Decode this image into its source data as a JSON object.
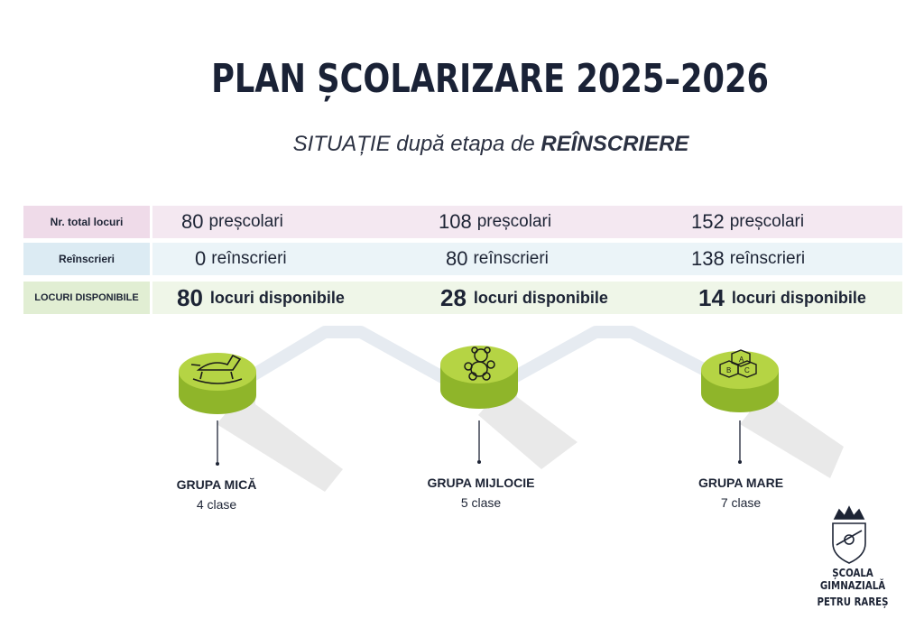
{
  "header": {
    "title": "PLAN ȘCOLARIZARE 2025–2026",
    "subtitle_prefix": "SITUAȚIE după etapa de",
    "subtitle_bold": "REÎNSCRIERE"
  },
  "table": {
    "rows": [
      {
        "label": "Nr. total locuri",
        "cells": [
          {
            "num": "80",
            "text": "preșcolari"
          },
          {
            "num": "108",
            "text": "preșcolari"
          },
          {
            "num": "152",
            "text": "preșcolari"
          }
        ]
      },
      {
        "label": "Reînscrieri",
        "cells": [
          {
            "num": "0",
            "text": "reînscrieri"
          },
          {
            "num": "80",
            "text": "reînscrieri"
          },
          {
            "num": "138",
            "text": "reînscrieri"
          }
        ]
      },
      {
        "label": "LOCURI DISPONIBILE",
        "cells": [
          {
            "num": "80",
            "text": "locuri disponibile"
          },
          {
            "num": "28",
            "text": "locuri disponibile"
          },
          {
            "num": "14",
            "text": "locuri disponibile"
          }
        ]
      }
    ]
  },
  "groups": [
    {
      "name": "GRUPA MICĂ",
      "classes": "4 clase",
      "icon": "rocking-horse-icon"
    },
    {
      "name": "GRUPA MIJLOCIE",
      "classes": "5 clase",
      "icon": "teddy-bear-icon"
    },
    {
      "name": "GRUPA MARE",
      "classes": "7 clase",
      "icon": "abc-blocks-icon"
    }
  ],
  "block_letters": [
    "A",
    "B",
    "C"
  ],
  "logo": {
    "line1": "ȘCOALA GIMNAZIALĂ",
    "line2": "PETRU RAREȘ"
  },
  "colors": {
    "disc_green": "#b5d444",
    "disc_side": "#8fb52a",
    "title_navy": "#1a2236",
    "path_gray": "#e3e9ef"
  }
}
